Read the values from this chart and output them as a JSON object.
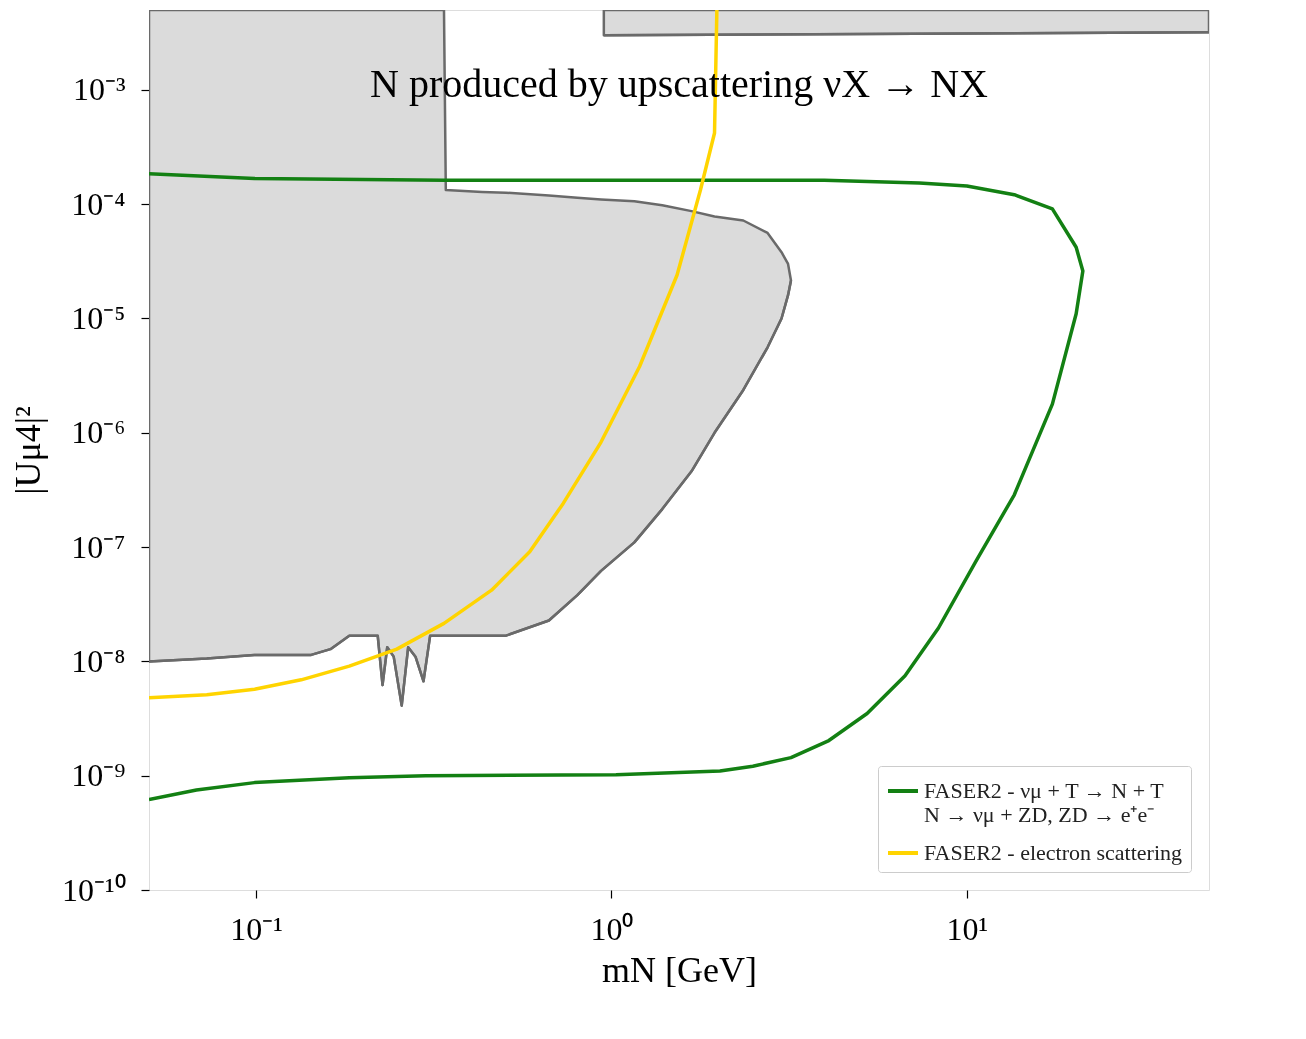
{
  "chart_data": {
    "type": "line",
    "xlabel": "mN [GeV]",
    "ylabel": "|Uμ4|²",
    "annotations": [
      "N produced by upscattering νX → NX"
    ],
    "log": "xy",
    "legend": "bottom right",
    "grid": false,
    "xlim": [
      0.05,
      48
    ],
    "ylim": [
      1e-10,
      0.005
    ],
    "xticks": [
      {
        "value": 0.1,
        "label": "10⁻¹"
      },
      {
        "value": 1,
        "label": "10⁰"
      },
      {
        "value": 10,
        "label": "10¹"
      }
    ],
    "yticks": [
      {
        "value": 1e-10,
        "label": "10⁻¹⁰"
      },
      {
        "value": 1e-09,
        "label": "10⁻⁹"
      },
      {
        "value": 1e-08,
        "label": "10⁻⁸"
      },
      {
        "value": 1e-07,
        "label": "10⁻⁷"
      },
      {
        "value": 1e-06,
        "label": "10⁻⁶"
      },
      {
        "value": 1e-05,
        "label": "10⁻⁵"
      },
      {
        "value": 0.0001,
        "label": "10⁻⁴"
      },
      {
        "value": 0.001,
        "label": "10⁻³"
      }
    ],
    "series": [
      {
        "color": "#6a6a6a",
        "x": [
          0.05,
          0.0727,
          0.099,
          0.143,
          0.162,
          0.183,
          0.22,
          0.227,
          0.234,
          0.244,
          0.257,
          0.268,
          0.281,
          0.296,
          0.309,
          0.338,
          0.342,
          0.433,
          0.505,
          0.667,
          0.802,
          0.935,
          1.16,
          1.39,
          1.68,
          1.95,
          2.35,
          2.75,
          3.01,
          3.14,
          3.2
        ],
        "values": [
          1e-08,
          1.06e-08,
          1.14e-08,
          1.14e-08,
          1.28e-08,
          1.68e-08,
          1.68e-08,
          6.2e-09,
          1.33e-08,
          1.1e-08,
          4.1e-09,
          1.33e-08,
          1.1e-08,
          6.7e-09,
          1.68e-08,
          1.68e-08,
          1.68e-08,
          1.68e-08,
          1.68e-08,
          2.28e-08,
          3.8e-08,
          6.2e-08,
          1.1e-07,
          2.15e-07,
          4.6e-07,
          1e-06,
          2.37e-06,
          5.6e-06,
          1e-05,
          1.6e-05,
          2.15e-05
        ],
        "lower": [
          1e-08,
          1.06e-08,
          1.14e-08,
          1.14e-08,
          1.28e-08,
          1.68e-08,
          1.68e-08,
          6.2e-09,
          1.33e-08,
          1.1e-08,
          4.1e-09,
          1.33e-08,
          1.1e-08,
          6.7e-09,
          1.68e-08,
          1.68e-08,
          1.68e-08,
          1.68e-08,
          1.68e-08,
          2.28e-08,
          3.8e-08,
          6.2e-08,
          1.1e-07,
          2.15e-07,
          4.6e-07,
          1e-06,
          2.37e-06,
          5.6e-06,
          1e-05,
          1.6e-05,
          2.15e-05
        ],
        "upper": [
          0.005,
          0.005,
          0.005,
          0.005,
          0.005,
          0.005,
          0.005,
          0.005,
          0.005,
          0.005,
          0.005,
          0.005,
          0.005,
          0.005,
          0.005,
          0.005,
          0.000133,
          0.000128,
          0.000126,
          0.000119,
          0.000114,
          0.00011,
          0.000106,
          9.8e-05,
          8.7e-05,
          7.8e-05,
          7.2e-05,
          5.6e-05,
          3.8e-05,
          3e-05,
          2.15e-05
        ]
      },
      {
        "color": "#6a6a6a",
        "x": [
          0.952,
          48
        ],
        "values": [
          0.003,
          0.0032
        ],
        "lower": [
          0.003,
          0.0032
        ],
        "upper": [
          0.005,
          0.005
        ]
      },
      {
        "name": "FASER2 - νμ + T → N + T\nN → νμ + ZD,  ZD → e⁺e⁻",
        "color": "#138013",
        "x": [
          0.05,
          0.099,
          0.338,
          3.97,
          7.35,
          10,
          13.6,
          17.4,
          20.3,
          21.2,
          20.3,
          17.4,
          13.6,
          10.6,
          8.32,
          6.7,
          5.24,
          4.09,
          3.2,
          2.5,
          2.02,
          1.03,
          0.3,
          0.183,
          0.099,
          0.068,
          0.05
        ],
        "values": [
          0.000185,
          0.000168,
          0.000162,
          0.000162,
          0.000153,
          0.000144,
          0.000121,
          9.1e-05,
          4.2e-05,
          2.6e-05,
          1.1e-05,
          1.78e-06,
          2.87e-07,
          7.5e-08,
          1.96e-08,
          7.5e-09,
          3.5e-09,
          2.03e-09,
          1.44e-09,
          1.21e-09,
          1.1e-09,
          1.02e-09,
          1e-09,
          9.6e-10,
          8.7e-10,
          7.5e-10,
          6.2e-10
        ]
      },
      {
        "name": "FASER2 - electron scattering",
        "color": "#ffd400",
        "x": [
          0.05,
          0.0727,
          0.099,
          0.134,
          0.183,
          0.249,
          0.338,
          0.46,
          0.589,
          0.731,
          0.935,
          1.2,
          1.53,
          1.78,
          1.95,
          1.98
        ],
        "values": [
          4.8e-09,
          5.1e-09,
          5.7e-09,
          6.9e-09,
          9.1e-09,
          1.28e-08,
          2.15e-08,
          4.2e-08,
          9.1e-08,
          2.4e-07,
          8.3e-07,
          3.8e-06,
          2.4e-05,
          0.000133,
          0.00042,
          0.005
        ]
      }
    ]
  }
}
